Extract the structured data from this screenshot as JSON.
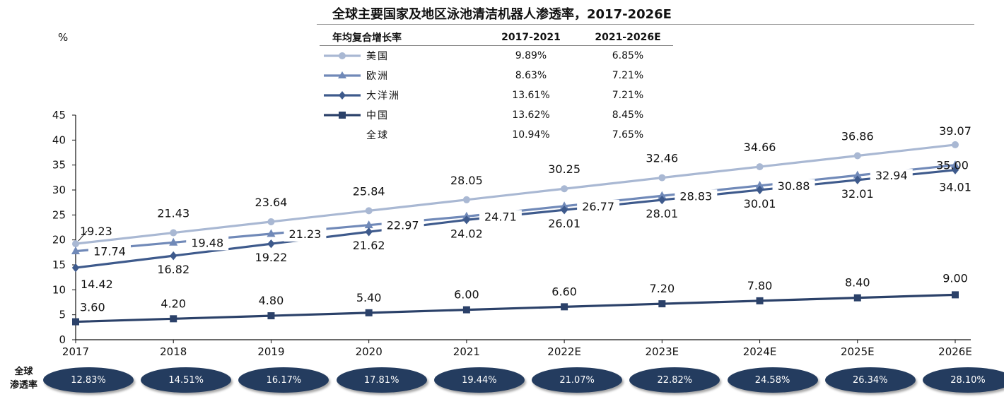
{
  "title": "全球主要国家及地区泳池清洁机器人渗透率，2017-2026E",
  "unit": "%",
  "cagr_table": {
    "headers": [
      "年均复合增长率",
      "2017-2021",
      "2021-2026E"
    ],
    "rows": [
      {
        "region": "美国",
        "marker": "circle",
        "c1": "9.89%",
        "c2": "6.85%"
      },
      {
        "region": "欧洲",
        "marker": "triangle",
        "c1": "8.63%",
        "c2": "7.21%"
      },
      {
        "region": "大洋洲",
        "marker": "diamond",
        "c1": "13.61%",
        "c2": "7.21%"
      },
      {
        "region": "中国",
        "marker": "square",
        "c1": "13.62%",
        "c2": "8.45%"
      },
      {
        "region": "全球",
        "marker": "",
        "c1": "10.94%",
        "c2": "7.65%"
      }
    ]
  },
  "penetration": {
    "label_line1": "全球",
    "label_line2": "渗透率",
    "values": [
      "12.83%",
      "14.51%",
      "16.17%",
      "17.81%",
      "19.44%",
      "21.07%",
      "22.82%",
      "24.58%",
      "26.34%",
      "28.10%"
    ]
  },
  "chart_data": {
    "type": "line",
    "title": "全球主要国家及地区泳池清洁机器人渗透率，2017-2026E",
    "ylabel": "%",
    "categories": [
      "2017",
      "2018",
      "2019",
      "2020",
      "2021",
      "2022E",
      "2023E",
      "2024E",
      "2025E",
      "2026E"
    ],
    "ylim": [
      0,
      45
    ],
    "yticks": [
      0,
      5,
      10,
      15,
      20,
      25,
      30,
      35,
      40,
      45
    ],
    "grid": false,
    "series": [
      {
        "name": "美国",
        "marker": "circle",
        "color": "#a9b8d3",
        "values": [
          19.23,
          21.43,
          23.64,
          25.84,
          28.05,
          30.25,
          32.46,
          34.66,
          36.86,
          39.07
        ]
      },
      {
        "name": "欧洲",
        "marker": "triangle",
        "color": "#7089b8",
        "values": [
          17.74,
          19.48,
          21.23,
          22.97,
          24.71,
          26.77,
          28.83,
          30.88,
          32.94,
          35.0
        ]
      },
      {
        "name": "大洋洲",
        "marker": "diamond",
        "color": "#3e5a8c",
        "values": [
          14.42,
          16.82,
          19.22,
          21.62,
          24.02,
          26.01,
          28.01,
          30.01,
          32.01,
          34.01
        ]
      },
      {
        "name": "中国",
        "marker": "square",
        "color": "#2b4169",
        "values": [
          3.6,
          4.2,
          4.8,
          5.4,
          6.0,
          6.6,
          7.2,
          7.8,
          8.4,
          9.0
        ]
      }
    ]
  }
}
